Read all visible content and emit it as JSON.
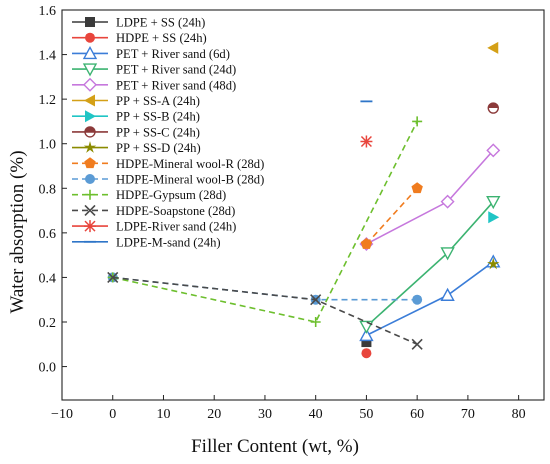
{
  "chart_data": {
    "type": "scatter",
    "xlabel": "Filler Content (wt, %)",
    "ylabel": "Water absorption (%)",
    "xlim": [
      -10,
      85
    ],
    "ylim": [
      -0.15,
      1.6
    ],
    "xticks": [
      -10,
      0,
      10,
      20,
      30,
      40,
      50,
      60,
      70,
      80
    ],
    "yticks": [
      0.0,
      0.2,
      0.4,
      0.6,
      0.8,
      1.0,
      1.2,
      1.4,
      1.6
    ],
    "grid": false,
    "legend_position": "top-left",
    "series": [
      {
        "name": "LDPE + SS (24h)",
        "color": "#3a3a3a",
        "marker": "square",
        "line": "none",
        "x": [
          50
        ],
        "y": [
          0.11
        ]
      },
      {
        "name": "HDPE + SS (24h)",
        "color": "#e8453c",
        "marker": "circle",
        "line": "none",
        "x": [
          50
        ],
        "y": [
          0.06
        ]
      },
      {
        "name": "PET + River sand (6d)",
        "color": "#3b7dd8",
        "marker": "triangle-up",
        "line": "solid",
        "x": [
          50,
          66,
          75
        ],
        "y": [
          0.14,
          0.32,
          0.47
        ]
      },
      {
        "name": "PET + River sand (24d)",
        "color": "#3cb371",
        "marker": "triangle-down",
        "line": "solid",
        "x": [
          50,
          66,
          75
        ],
        "y": [
          0.18,
          0.51,
          0.74
        ]
      },
      {
        "name": "PET + River sand (48d)",
        "color": "#c678dd",
        "marker": "diamond",
        "line": "solid",
        "x": [
          50,
          66,
          75
        ],
        "y": [
          0.55,
          0.74,
          0.97
        ]
      },
      {
        "name": "PP + SS-A (24h)",
        "color": "#d4a017",
        "marker": "triangle-left",
        "line": "none",
        "x": [
          75
        ],
        "y": [
          1.43
        ]
      },
      {
        "name": "PP + SS-B (24h)",
        "color": "#20c5c5",
        "marker": "triangle-right",
        "line": "none",
        "x": [
          75
        ],
        "y": [
          0.67
        ]
      },
      {
        "name": "PP + SS-C (24h)",
        "color": "#8b3a3a",
        "marker": "circle-half",
        "line": "none",
        "x": [
          75
        ],
        "y": [
          1.16
        ]
      },
      {
        "name": "PP + SS-D (24h)",
        "color": "#8b8b00",
        "marker": "star",
        "line": "none",
        "x": [
          75
        ],
        "y": [
          0.46
        ]
      },
      {
        "name": "HDPE-Mineral wool-R (28d)",
        "color": "#f07c1f",
        "marker": "pentagon",
        "line": "dashed",
        "x": [
          50,
          60
        ],
        "y": [
          0.55,
          0.8
        ]
      },
      {
        "name": "HDPE-Mineral wool-B  (28d)",
        "color": "#5b9bd5",
        "marker": "circle",
        "line": "dashed",
        "x": [
          0,
          40,
          60
        ],
        "y": [
          0.4,
          0.3,
          0.3
        ]
      },
      {
        "name": "HDPE-Gypsum (28d)",
        "color": "#6dbf2e",
        "marker": "plus",
        "line": "dashed",
        "x": [
          0,
          40,
          60
        ],
        "y": [
          0.4,
          0.2,
          1.1
        ]
      },
      {
        "name": "HDPE-Soapstone (28d)",
        "color": "#4a4a4a",
        "marker": "x",
        "line": "dashed",
        "x": [
          0,
          40,
          60
        ],
        "y": [
          0.4,
          0.3,
          0.1
        ]
      },
      {
        "name": "LDPE-River sand (24h)",
        "color": "#e8453c",
        "marker": "asterisk",
        "line": "none",
        "x": [
          50
        ],
        "y": [
          1.01
        ]
      },
      {
        "name": "LDPE-M-sand (24h)",
        "color": "#2e75c8",
        "marker": "hline",
        "line": "solid",
        "x": [
          50
        ],
        "y": [
          1.19
        ]
      }
    ]
  }
}
